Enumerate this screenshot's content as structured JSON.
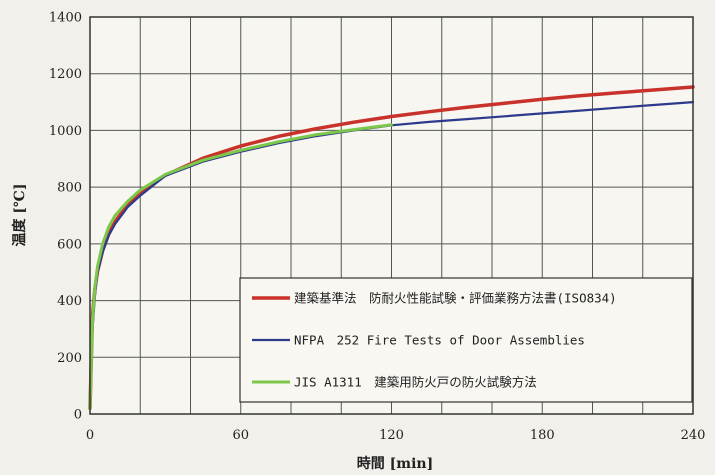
{
  "chart_data": {
    "type": "line",
    "title": "",
    "xlabel": "時間 [min]",
    "ylabel": "温度 [℃]",
    "xlim": [
      0,
      240
    ],
    "ylim": [
      0,
      1400
    ],
    "xticks": [
      0,
      60,
      120,
      180,
      240
    ],
    "yticks": [
      0,
      200,
      400,
      600,
      800,
      1000,
      1200,
      1400
    ],
    "x_minor_step": 20,
    "grid": true,
    "legend_position": "bottom-right",
    "series": [
      {
        "name": "建築基準法　防耐火性能試験・評価業務方法書(ISO834)",
        "color": "#c8322a",
        "x": [
          0,
          1,
          2,
          3,
          5,
          7.5,
          10,
          15,
          20,
          30,
          45,
          60,
          75,
          90,
          105,
          120,
          135,
          150,
          165,
          180,
          195,
          210,
          225,
          240
        ],
        "y": [
          20,
          349,
          445,
          502,
          576,
          635,
          678,
          739,
          781,
          842,
          902,
          945,
          979,
          1006,
          1029,
          1049,
          1066,
          1082,
          1096,
          1110,
          1122,
          1133,
          1143,
          1153
        ]
      },
      {
        "name": "NFPA　252 Fire Tests of Door Assemblies",
        "color": "#2c3a8c",
        "x": [
          0,
          1,
          2,
          3,
          5,
          7.5,
          10,
          15,
          20,
          30,
          45,
          60,
          75,
          90,
          105,
          120,
          135,
          150,
          165,
          180,
          195,
          210,
          225,
          240
        ],
        "y": [
          20,
          300,
          420,
          500,
          570,
          630,
          670,
          730,
          770,
          840,
          890,
          925,
          955,
          980,
          1000,
          1018,
          1030,
          1040,
          1050,
          1060,
          1070,
          1080,
          1090,
          1100
        ]
      },
      {
        "name": "JIS A1311　建築用防火戸の防火試験方法",
        "color": "#7cc84a",
        "x": [
          0,
          1,
          2,
          3,
          5,
          7.5,
          10,
          15,
          20,
          30,
          45,
          60,
          75,
          90,
          105,
          120
        ],
        "y": [
          20,
          330,
          450,
          520,
          600,
          660,
          700,
          750,
          790,
          845,
          895,
          930,
          960,
          985,
          1003,
          1020
        ]
      }
    ]
  }
}
